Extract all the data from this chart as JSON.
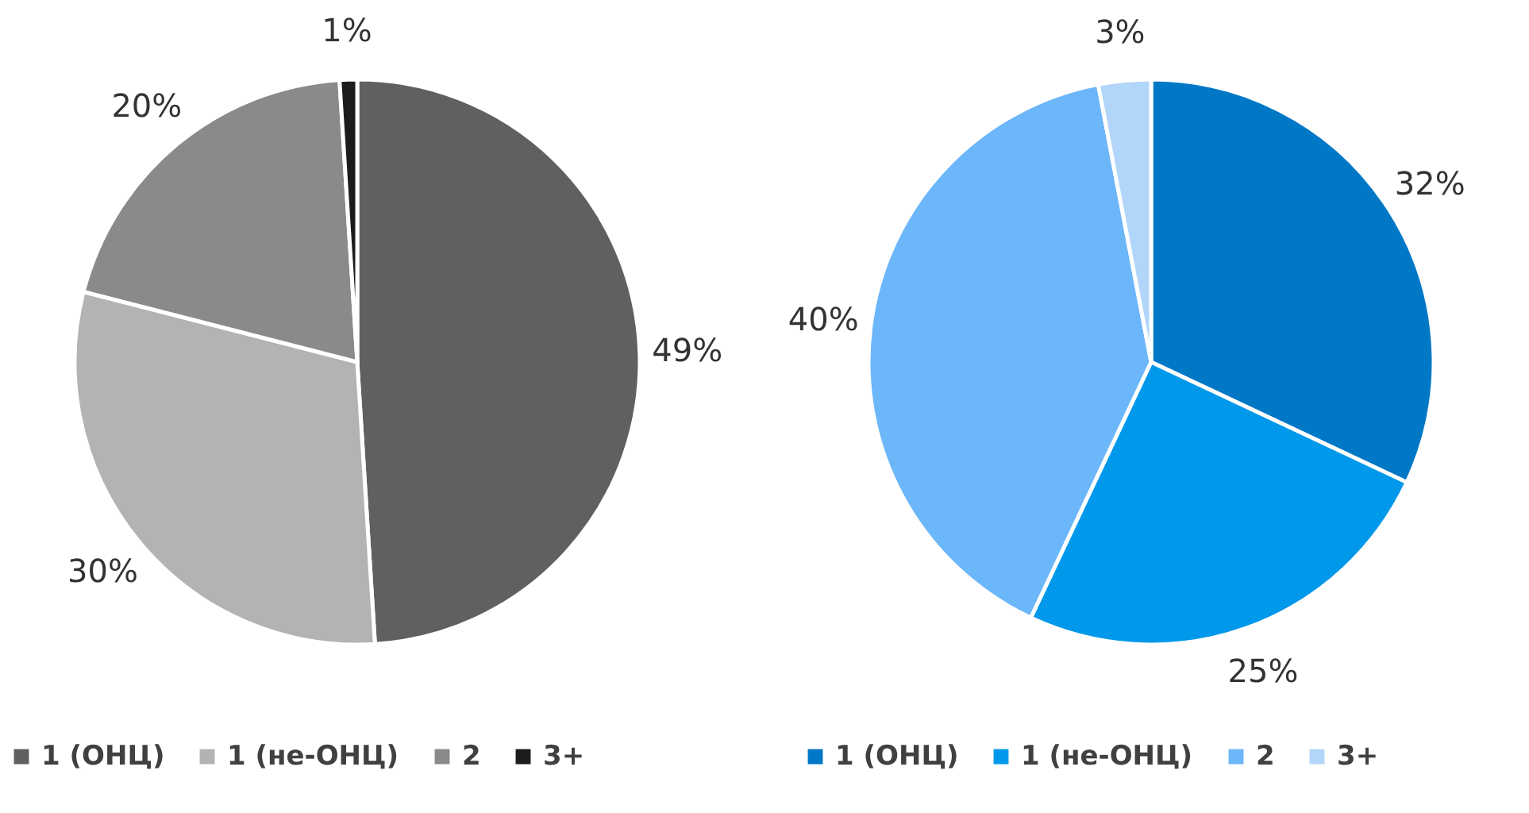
{
  "chart_data": [
    {
      "type": "pie",
      "categories": [
        "1 (ОНЦ)",
        "1 (не-ОНЦ)",
        "2",
        "3+"
      ],
      "values": [
        49,
        30,
        20,
        1
      ],
      "colors": [
        "#606060",
        "#b3b3b3",
        "#8a8a8a",
        "#1c1c1c"
      ],
      "value_labels": [
        "49%",
        "30%",
        "20%",
        "1%"
      ],
      "legend": "bottom"
    },
    {
      "type": "pie",
      "categories": [
        "1 (ОНЦ)",
        "1 (не-ОНЦ)",
        "2",
        "3+"
      ],
      "values": [
        32,
        25,
        40,
        3
      ],
      "colors": [
        "#0078c6",
        "#0098ea",
        "#6cb6fa",
        "#b2d6fa"
      ],
      "value_labels": [
        "32%",
        "25%",
        "40%",
        "3%"
      ],
      "legend": "bottom"
    }
  ]
}
